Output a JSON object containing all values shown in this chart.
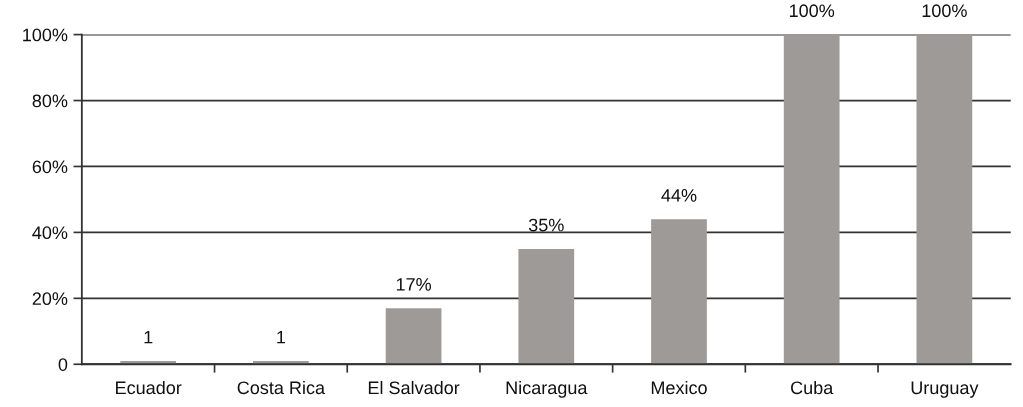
{
  "chart_data": {
    "type": "bar",
    "categories": [
      "Ecuador",
      "Costa Rica",
      "El Salvador",
      "Nicaragua",
      "Mexico",
      "Cuba",
      "Uruguay"
    ],
    "values": [
      1,
      1,
      17,
      35,
      44,
      100,
      100
    ],
    "value_labels": [
      "1",
      "1",
      "17%",
      "35%",
      "44%",
      "100%",
      "100%"
    ],
    "color": "#9e9a97",
    "ylim": [
      0,
      100
    ],
    "yticks": [
      {
        "value": 0,
        "label": "0"
      },
      {
        "value": 20,
        "label": "20%"
      },
      {
        "value": 40,
        "label": "40%"
      },
      {
        "value": 60,
        "label": "60%"
      },
      {
        "value": 80,
        "label": "80%"
      },
      {
        "value": 100,
        "label": "100%"
      }
    ],
    "grid": "y"
  }
}
